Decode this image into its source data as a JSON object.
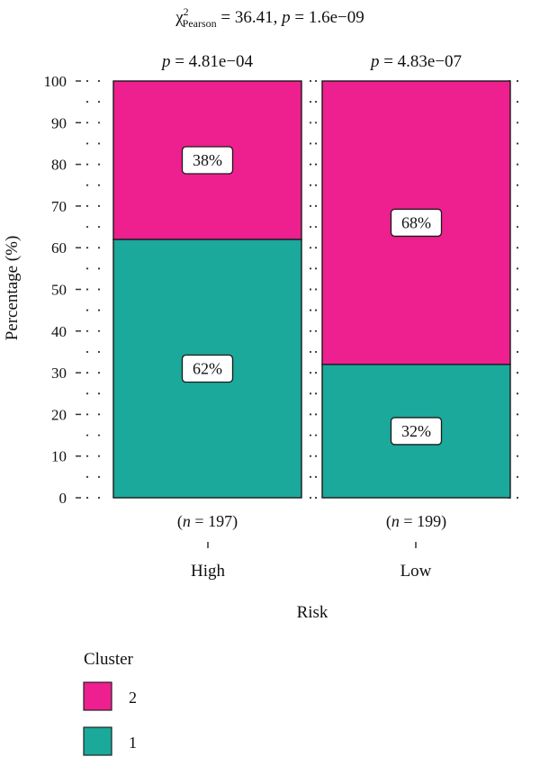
{
  "chart_data": {
    "type": "bar",
    "stacked": true,
    "percent": true,
    "categories": [
      "High",
      "Low"
    ],
    "counts": [
      "(n = 197)",
      "(n = 199)"
    ],
    "panel_pvalues": [
      "p = 4.81e−04",
      "p = 4.83e−07"
    ],
    "title": {
      "chi": "χ",
      "chi_sup": "2",
      "chi_sub": "Pearson",
      "stat": " = 36.41, ",
      "p_letter": "p",
      "p_rest": " = 1.6e−09"
    },
    "series": [
      {
        "name": "1",
        "values": [
          62,
          32
        ],
        "labels": [
          "62%",
          "32%"
        ],
        "color": "#1aa99b"
      },
      {
        "name": "2",
        "values": [
          38,
          68
        ],
        "labels": [
          "38%",
          "68%"
        ],
        "color": "#ee1f8f"
      }
    ],
    "xlabel": "Risk",
    "ylabel": "Percentage (%)",
    "ylim": [
      0,
      100
    ],
    "yticks": [
      0,
      10,
      20,
      30,
      40,
      50,
      60,
      70,
      80,
      90,
      100
    ],
    "legend": {
      "title": "Cluster",
      "items": [
        {
          "label": "2",
          "color": "#ee1f8f"
        },
        {
          "label": "1",
          "color": "#1aa99b"
        }
      ],
      "placement": "bottom-left"
    }
  }
}
